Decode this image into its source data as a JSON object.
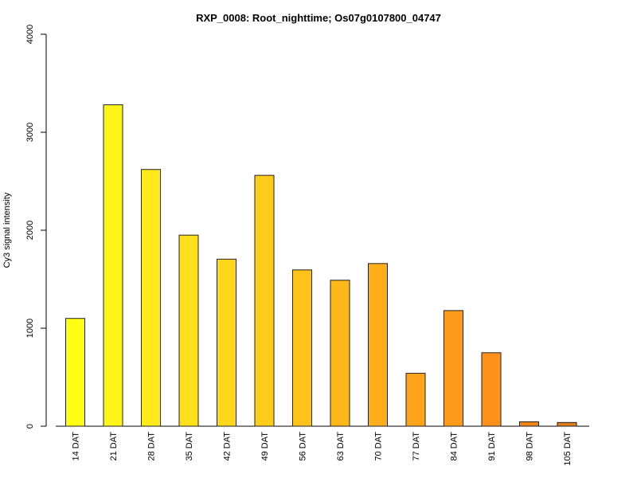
{
  "chart_data": {
    "type": "bar",
    "title": "RXP_0008: Root_nighttime; Os07g0107800_04747",
    "xlabel": "",
    "ylabel": "Cy3 signal intensity",
    "ylim": [
      0,
      4000
    ],
    "yticks": [
      0,
      1000,
      2000,
      3000,
      4000
    ],
    "grid": false,
    "categories": [
      "14 DAT",
      "21 DAT",
      "28 DAT",
      "35 DAT",
      "42 DAT",
      "49 DAT",
      "56 DAT",
      "63 DAT",
      "70 DAT",
      "77 DAT",
      "84 DAT",
      "91 DAT",
      "98 DAT",
      "105 DAT"
    ],
    "values": [
      1100,
      3280,
      2620,
      1950,
      1705,
      2560,
      1595,
      1490,
      1660,
      540,
      1180,
      750,
      45,
      38
    ],
    "colors": [
      "#FFFF14",
      "#FFF41A",
      "#FFEA1A",
      "#FFE01A",
      "#FFD61A",
      "#FFCC1A",
      "#FFC21A",
      "#FFB81A",
      "#FFAE1A",
      "#FFA41A",
      "#FF9A1A",
      "#FF901A",
      "#F0861A",
      "#E07C1A"
    ]
  }
}
